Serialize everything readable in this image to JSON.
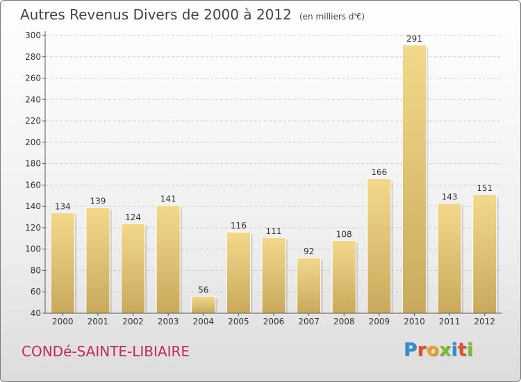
{
  "title": "Autres Revenus Divers de 2000 à 2012",
  "title_unit": "(en milliers d'€)",
  "commune": "CONDé-SAINTE-LIBIAIRE",
  "logo": {
    "text": "Proxiti",
    "letter_colors": [
      "#2a8fd6",
      "#e0522b",
      "#f0a21b",
      "#7bbf2a",
      "#2a8fd6",
      "#e0522b",
      "#7bbf2a"
    ]
  },
  "colors": {
    "bar_light": "#f3d88c",
    "bar_dark": "#c9aa5c",
    "axis": "#555555",
    "grid": "#cfcfcf",
    "text": "#333333",
    "commune": "#c0285f"
  },
  "chart_data": {
    "type": "bar",
    "categories": [
      "2000",
      "2001",
      "2002",
      "2003",
      "2004",
      "2005",
      "2006",
      "2007",
      "2008",
      "2009",
      "2010",
      "2011",
      "2012"
    ],
    "values": [
      134,
      139,
      124,
      141,
      56,
      116,
      111,
      92,
      108,
      166,
      291,
      143,
      151
    ],
    "data_labels": [
      "134",
      "139",
      "124",
      "141",
      "56",
      "116",
      "111",
      "92",
      "108",
      "166",
      "291",
      "143",
      "151"
    ],
    "ylim": [
      40,
      300
    ],
    "yticks": [
      40,
      60,
      80,
      100,
      120,
      140,
      160,
      180,
      200,
      220,
      240,
      260,
      280,
      300
    ],
    "ytick_labels": [
      "40",
      "60",
      "80",
      "100",
      "120",
      "140",
      "160",
      "180",
      "200",
      "220",
      "240",
      "260",
      "280",
      "300"
    ],
    "grid": true,
    "legend": "none"
  }
}
